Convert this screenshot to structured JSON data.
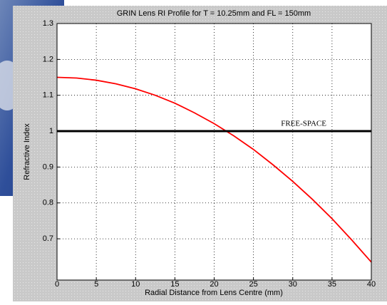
{
  "chart_data": {
    "type": "line",
    "title": "GRIN Lens RI Profile for T = 10.25mm  and FL = 150mm",
    "x_label": "Radial Distance from Lens Centre (mm)",
    "y_label": "Refractive Index",
    "x": [
      0,
      2.5,
      5,
      7.5,
      10,
      12.5,
      15,
      17.5,
      20,
      22.5,
      25,
      27.5,
      30,
      32.5,
      35,
      37.5,
      40
    ],
    "series": [
      {
        "color": "#ff0000",
        "values": [
          1.15,
          1.148,
          1.142,
          1.132,
          1.118,
          1.1,
          1.078,
          1.051,
          1.021,
          0.987,
          0.949,
          0.906,
          0.86,
          0.81,
          0.756,
          0.697,
          0.635
        ]
      },
      {
        "color": "#000000",
        "values": [
          1,
          1,
          1,
          1,
          1,
          1,
          1,
          1,
          1,
          1,
          1,
          1,
          1,
          1,
          1,
          1,
          1
        ]
      }
    ],
    "annotations": [
      {
        "text": "FREE-SPACE",
        "x": 28.5,
        "y": 1.02
      }
    ],
    "xlim": [
      0,
      40
    ],
    "xticks": [
      0,
      5,
      10,
      15,
      20,
      25,
      30,
      35,
      40
    ],
    "ylim": [
      0.585,
      1.3
    ],
    "yticks": [
      0.7,
      0.8,
      0.9,
      1,
      1.1,
      1.2,
      1.3
    ],
    "grid": true
  }
}
